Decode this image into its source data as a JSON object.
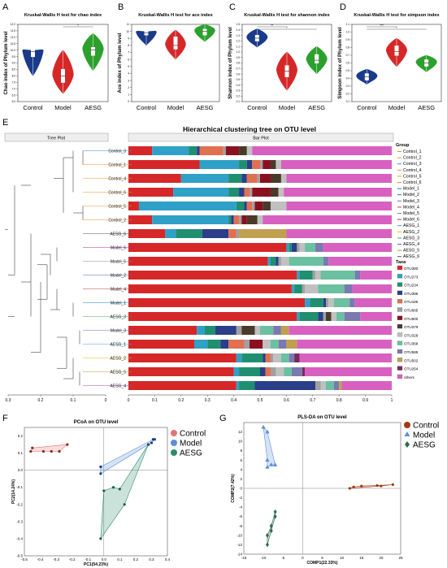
{
  "panel_letters": [
    "A",
    "B",
    "C",
    "D",
    "E",
    "F",
    "G"
  ],
  "colors": {
    "control": "#1a3a8a",
    "model": "#d62728",
    "aesg": "#2ca02c",
    "pcoa_model": "#5b8fd9",
    "pcoa_aesg": "#2e8b70",
    "plsda_control": "#a33a14",
    "plsda_model": "#5b8fd9",
    "plsda_aesg": "#2e6b4f"
  },
  "violin_groups": [
    "Control",
    "Model",
    "AESG"
  ],
  "chart_data": [
    {
      "id": "A",
      "type": "violin",
      "title": "Kruskal-Wallis H test for chao index",
      "ylabel": "Chao index of Phylum level",
      "yticks": [
        "6.0",
        "6.5",
        "7.0",
        "7.5",
        "8.0",
        "8.5",
        "9.0",
        "9.5",
        "10.0",
        "10.5",
        "11.0",
        "11.5",
        "12.0"
      ],
      "ylim": [
        6,
        12
      ],
      "categories": [
        "Control",
        "Model",
        "AESG"
      ],
      "series": [
        {
          "median": 9.9,
          "min": 8.0,
          "max": 10.0,
          "q1": 9.5,
          "q3": 10.0
        },
        {
          "median": 8.0,
          "min": 6.6,
          "max": 10.0,
          "q1": 7.5,
          "q3": 8.5
        },
        {
          "median": 10.0,
          "min": 8.4,
          "max": 11.3,
          "q1": 9.6,
          "q3": 10.2
        }
      ],
      "significance": [
        {
          "from": "Model",
          "to": "AESG",
          "label": "*"
        }
      ]
    },
    {
      "id": "B",
      "type": "violin",
      "title": "Kruskal-Wallis H test for ace index",
      "ylabel": "Ace index of Phylum level",
      "yticks": [
        "0",
        "1",
        "2",
        "3",
        "4",
        "5",
        "6",
        "7",
        "8",
        "9",
        "10",
        "11"
      ],
      "ylim": [
        0,
        11
      ],
      "categories": [
        "Control",
        "Model",
        "AESG"
      ],
      "series": [
        {
          "median": 9.8,
          "min": 8.0,
          "max": 10.0,
          "q1": 9.5,
          "q3": 10.0
        },
        {
          "median": 8.0,
          "min": 6.0,
          "max": 10.2,
          "q1": 7.5,
          "q3": 9.2
        },
        {
          "median": 10.0,
          "min": 8.5,
          "max": 11.0,
          "q1": 9.5,
          "q3": 10.3
        }
      ],
      "significance": []
    },
    {
      "id": "C",
      "type": "violin",
      "title": "Kruskal-Wallis H test for shannon index",
      "ylabel": "Shannon index of Phylum level",
      "yticks": [
        "0.1",
        "0.2",
        "0.3",
        "0.4",
        "0.5",
        "0.6",
        "0.7",
        "0.8",
        "0.9",
        "1.0",
        "1.1",
        "1.2",
        "1.3",
        "1.4",
        "1.5"
      ],
      "ylim": [
        0.1,
        1.5
      ],
      "categories": [
        "Control",
        "Model",
        "AESG"
      ],
      "series": [
        {
          "median": 1.25,
          "min": 1.08,
          "max": 1.42,
          "q1": 1.2,
          "q3": 1.3
        },
        {
          "median": 0.65,
          "min": 0.3,
          "max": 1.0,
          "q1": 0.55,
          "q3": 0.75
        },
        {
          "median": 0.85,
          "min": 0.6,
          "max": 1.1,
          "q1": 0.8,
          "q3": 0.95
        }
      ],
      "significance": [
        {
          "from": "Control",
          "to": "Model",
          "label": "**"
        },
        {
          "from": "Control",
          "to": "AESG",
          "label": "*"
        }
      ]
    },
    {
      "id": "D",
      "type": "violin",
      "title": "Kruskal-Wallis H test for simpson index",
      "ylabel": "Simpson index of Phylum level",
      "yticks": [
        "0.1",
        "0.2",
        "0.3",
        "0.4",
        "0.5",
        "0.6",
        "0.7",
        "0.8",
        "0.9",
        "1.0",
        "1.1"
      ],
      "ylim": [
        0.1,
        1.1
      ],
      "categories": [
        "Control",
        "Model",
        "AESG"
      ],
      "series": [
        {
          "median": 0.42,
          "min": 0.32,
          "max": 0.52,
          "q1": 0.38,
          "q3": 0.46
        },
        {
          "median": 0.75,
          "min": 0.55,
          "max": 0.92,
          "q1": 0.7,
          "q3": 0.82
        },
        {
          "median": 0.6,
          "min": 0.48,
          "max": 0.7,
          "q1": 0.56,
          "q3": 0.64
        }
      ],
      "significance": [
        {
          "from": "Control",
          "to": "Model",
          "label": "***"
        },
        {
          "from": "Control",
          "to": "AESG",
          "label": "*"
        }
      ]
    },
    {
      "id": "E",
      "type": "bar",
      "title": "Hierarchical clustering tree on OTU level",
      "tree_header": "Tree Plot",
      "bar_header": "Bar Plot",
      "tree_ticks": [
        "0.3",
        "0.2",
        "0.1",
        "0"
      ],
      "bar_ticks": [
        "0",
        "0.1",
        "0.2",
        "0.3",
        "0.4",
        "0.5",
        "0.6",
        "0.7",
        "0.8",
        "0.9",
        "1"
      ],
      "group_legend_title": "Group",
      "taxa_legend_title": "Taxa",
      "groups": [
        "Control_1",
        "Control_2",
        "Control_3",
        "Control_4",
        "Control_5",
        "Control_6",
        "Model_1",
        "Model_2",
        "Model_3",
        "Model_4",
        "Model_5",
        "Model_6",
        "AESG_1",
        "AESG_2",
        "AESG_3",
        "AESG_4",
        "AESG_5",
        "AESG_6"
      ],
      "group_colors": [
        "#e6962a",
        "#e6962a",
        "#3a8fd1",
        "#e6962a",
        "#e6962a",
        "#e6962a",
        "#1a7ac0",
        "#3a6fb0",
        "#7a6bb5",
        "#c04040",
        "#8a8a8a",
        "#b02a80",
        "#4a9fd0",
        "#e0c000",
        "#4fb04f",
        "#9a4fa0",
        "#a0a030",
        "#555555"
      ],
      "taxa": [
        "OTU380",
        "OTU273",
        "OTU234",
        "OTU395",
        "OTU185",
        "OTU605",
        "OTU600",
        "OTU379",
        "OTU328",
        "OTU368",
        "OTU585",
        "OTU502",
        "OTU254",
        "others"
      ],
      "taxa_colors": [
        "#d62728",
        "#2fa0c8",
        "#1f8f6f",
        "#2a3e8a",
        "#e07050",
        "#a0a0a0",
        "#8a1020",
        "#4a3a2a",
        "#c0c0c0",
        "#6ac0a0",
        "#7a7ab0",
        "#c0a050",
        "#7a2a5a",
        "#d860c0"
      ],
      "rows": [
        {
          "name": "Control_3",
          "branch": "#3a8fd1",
          "values": [
            0.09,
            0.14,
            0.03,
            0.01,
            0.09,
            0.01,
            0.05,
            0.03,
            0.02,
            0.0,
            0.0,
            0.0,
            0.0,
            0.53
          ]
        },
        {
          "name": "Control_1",
          "branch": "#e6962a",
          "values": [
            0.27,
            0.15,
            0.03,
            0.02,
            0.03,
            0.01,
            0.03,
            0.02,
            0.02,
            0.0,
            0.0,
            0.0,
            0.0,
            0.42
          ]
        },
        {
          "name": "Control_4",
          "branch": "#e6962a",
          "values": [
            0.2,
            0.18,
            0.05,
            0.02,
            0.04,
            0.01,
            0.04,
            0.04,
            0.02,
            0.0,
            0.0,
            0.0,
            0.0,
            0.4
          ]
        },
        {
          "name": "Control_6",
          "branch": "#e6962a",
          "values": [
            0.17,
            0.21,
            0.04,
            0.02,
            0.02,
            0.01,
            0.07,
            0.03,
            0.02,
            0.0,
            0.0,
            0.0,
            0.0,
            0.41
          ]
        },
        {
          "name": "Control_5",
          "branch": "#e6962a",
          "values": [
            0.04,
            0.37,
            0.03,
            0.01,
            0.02,
            0.01,
            0.03,
            0.03,
            0.06,
            0.0,
            0.0,
            0.0,
            0.0,
            0.4
          ]
        },
        {
          "name": "Control_2",
          "branch": "#e6962a",
          "values": [
            0.09,
            0.29,
            0.01,
            0.01,
            0.02,
            0.01,
            0.02,
            0.04,
            0.02,
            0.0,
            0.0,
            0.0,
            0.0,
            0.49
          ]
        },
        {
          "name": "AESG_6",
          "branch": "#555555",
          "values": [
            0.14,
            0.04,
            0.1,
            0.1,
            0.03,
            0.01,
            0.0,
            0.0,
            0.0,
            0.0,
            0.0,
            0.18,
            0.0,
            0.4
          ]
        },
        {
          "name": "Model_6",
          "branch": "#b02a80",
          "values": [
            0.6,
            0.01,
            0.01,
            0.02,
            0.0,
            0.01,
            0.0,
            0.0,
            0.02,
            0.04,
            0.03,
            0.0,
            0.0,
            0.26
          ]
        },
        {
          "name": "Model_5",
          "branch": "#8a8a8a",
          "values": [
            0.53,
            0.01,
            0.02,
            0.01,
            0.0,
            0.01,
            0.0,
            0.0,
            0.03,
            0.13,
            0.02,
            0.0,
            0.0,
            0.24
          ]
        },
        {
          "name": "Model_2",
          "branch": "#3a6fb0",
          "values": [
            0.64,
            0.01,
            0.05,
            0.0,
            0.0,
            0.01,
            0.0,
            0.0,
            0.02,
            0.13,
            0.02,
            0.0,
            0.0,
            0.12
          ]
        },
        {
          "name": "Model_4",
          "branch": "#c04040",
          "values": [
            0.62,
            0.01,
            0.03,
            0.0,
            0.0,
            0.01,
            0.0,
            0.0,
            0.05,
            0.1,
            0.03,
            0.0,
            0.0,
            0.15
          ]
        },
        {
          "name": "Model_1",
          "branch": "#1a7ac0",
          "values": [
            0.67,
            0.02,
            0.05,
            0.01,
            0.0,
            0.01,
            0.0,
            0.0,
            0.02,
            0.06,
            0.02,
            0.0,
            0.0,
            0.14
          ]
        },
        {
          "name": "AESG_3",
          "branch": "#4fb04f",
          "values": [
            0.64,
            0.01,
            0.07,
            0.02,
            0.0,
            0.01,
            0.0,
            0.02,
            0.02,
            0.03,
            0.06,
            0.0,
            0.0,
            0.12
          ]
        },
        {
          "name": "Model_3",
          "branch": "#7a6bb5",
          "values": [
            0.26,
            0.03,
            0.04,
            0.08,
            0.0,
            0.02,
            0.0,
            0.05,
            0.02,
            0.05,
            0.03,
            0.03,
            0.0,
            0.39
          ]
        },
        {
          "name": "AESG_1",
          "branch": "#4a9fd0",
          "values": [
            0.25,
            0.05,
            0.05,
            0.03,
            0.06,
            0.02,
            0.05,
            0.0,
            0.03,
            0.03,
            0.03,
            0.04,
            0.0,
            0.36
          ]
        },
        {
          "name": "AESG_2",
          "branch": "#e0c000",
          "values": [
            0.41,
            0.02,
            0.08,
            0.01,
            0.02,
            0.01,
            0.0,
            0.0,
            0.03,
            0.03,
            0.02,
            0.0,
            0.02,
            0.35
          ]
        },
        {
          "name": "AESG_5",
          "branch": "#a0a030",
          "values": [
            0.4,
            0.02,
            0.08,
            0.02,
            0.02,
            0.02,
            0.0,
            0.0,
            0.03,
            0.03,
            0.04,
            0.0,
            0.01,
            0.33
          ]
        },
        {
          "name": "AESG_4",
          "branch": "#9a4fa0",
          "values": [
            0.41,
            0.01,
            0.06,
            0.23,
            0.0,
            0.02,
            0.0,
            0.0,
            0.02,
            0.03,
            0.02,
            0.01,
            0.0,
            0.19
          ]
        }
      ]
    },
    {
      "id": "F",
      "type": "scatter",
      "title": "PCoA on OTU level",
      "xlabel": "PC1(54.23%)",
      "ylabel": "PC2(14.24%)",
      "xticks": [
        "-0.5",
        "-0.4",
        "-0.3",
        "-0.2",
        "-0.1",
        "0.0",
        "0.1",
        "0.2",
        "0.3",
        "0.4"
      ],
      "yticks": [
        "-0.5",
        "-0.4",
        "-0.3",
        "-0.2",
        "-0.1",
        "0.0",
        "0.1",
        "0.2"
      ],
      "xlim": [
        -0.5,
        0.4
      ],
      "ylim": [
        -0.5,
        0.25
      ],
      "legend": [
        "Control",
        "Model",
        "AESG"
      ],
      "series": [
        {
          "name": "Control",
          "points": [
            [
              -0.46,
              0.11
            ],
            [
              -0.45,
              0.13
            ],
            [
              -0.38,
              0.11
            ],
            [
              -0.33,
              0.11
            ],
            [
              -0.28,
              0.11
            ],
            [
              -0.23,
              0.15
            ]
          ]
        },
        {
          "name": "Model",
          "points": [
            [
              -0.02,
              0.02
            ],
            [
              -0.02,
              -0.02
            ],
            [
              0.28,
              0.15
            ],
            [
              0.3,
              0.16
            ],
            [
              0.31,
              0.18
            ],
            [
              0.32,
              0.18
            ]
          ]
        },
        {
          "name": "AESG",
          "points": [
            [
              -0.02,
              -0.4
            ],
            [
              0.0,
              -0.12
            ],
            [
              0.06,
              -0.1
            ],
            [
              0.1,
              -0.11
            ],
            [
              0.13,
              -0.2
            ],
            [
              0.28,
              0.15
            ]
          ]
        }
      ]
    },
    {
      "id": "G",
      "type": "scatter",
      "title": "PLS-DA on OTU level",
      "xlabel": "COMP1(22.33%)",
      "ylabel": "COMP2(7.42%)",
      "xticks": [
        "-15",
        "-10",
        "-5",
        "0",
        "5",
        "10",
        "15",
        "20",
        "25"
      ],
      "yticks": [
        "-14",
        "-12",
        "-10",
        "-8",
        "-6",
        "-4",
        "-2",
        "0",
        "2",
        "4",
        "6",
        "8",
        "10",
        "12"
      ],
      "xlim": [
        -15,
        25
      ],
      "ylim": [
        -14,
        14
      ],
      "legend": [
        "Control",
        "Model",
        "AESG"
      ],
      "series": [
        {
          "name": "Control",
          "points": [
            [
              12,
              0
            ],
            [
              13,
              0.3
            ],
            [
              15,
              0.5
            ],
            [
              19,
              0.6
            ],
            [
              20,
              0.5
            ],
            [
              23,
              0.8
            ]
          ]
        },
        {
          "name": "Model",
          "points": [
            [
              -10,
              13
            ],
            [
              -9,
              12
            ],
            [
              -9,
              6
            ],
            [
              -8,
              5
            ],
            [
              -9,
              4.5
            ],
            [
              -7,
              5
            ]
          ]
        },
        {
          "name": "AESG",
          "points": [
            [
              -9,
              -12
            ],
            [
              -9,
              -10
            ],
            [
              -8,
              -9
            ],
            [
              -8,
              -8
            ],
            [
              -7,
              -6
            ],
            [
              -7,
              -5
            ]
          ]
        }
      ]
    }
  ]
}
